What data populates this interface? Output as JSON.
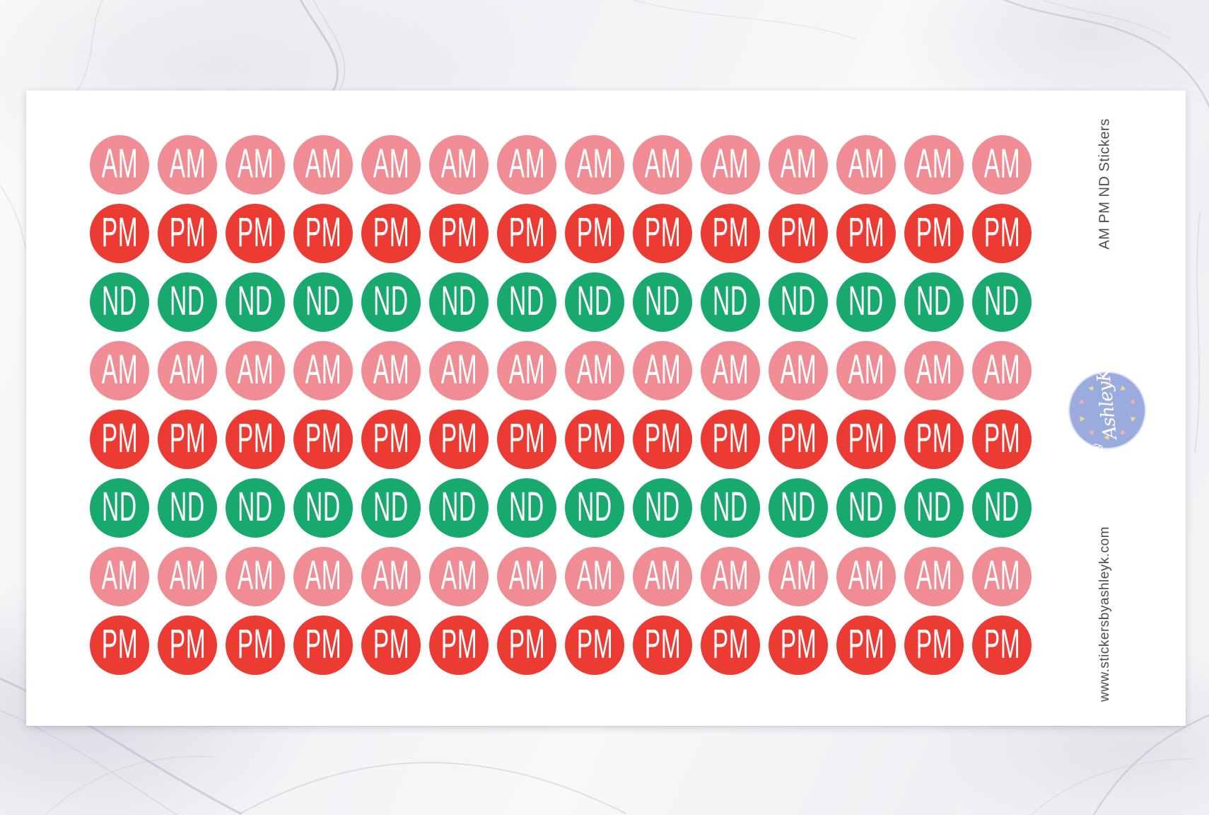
{
  "product": {
    "title": "AM PM ND Stickers",
    "website": "www.stickersbyashleyk.com"
  },
  "stickers": {
    "row_pattern": [
      "AM",
      "PM",
      "ND",
      "AM",
      "PM",
      "ND",
      "AM",
      "PM"
    ],
    "columns": 14,
    "colors": {
      "AM": "#F08C93",
      "PM": "#EB3B33",
      "ND": "#17A96E"
    },
    "label_color": "#FFFFFF"
  },
  "logo": {
    "line1": "by",
    "line2": "AshleyK",
    "badge_color": "#9AACDE",
    "text_color": "#FFFFFF",
    "heart_icon": "heart",
    "heart_count": 10,
    "heart_colors": [
      "#F2AFB4",
      "#F5D68C"
    ]
  },
  "side_text_color": "#4C4C4C"
}
